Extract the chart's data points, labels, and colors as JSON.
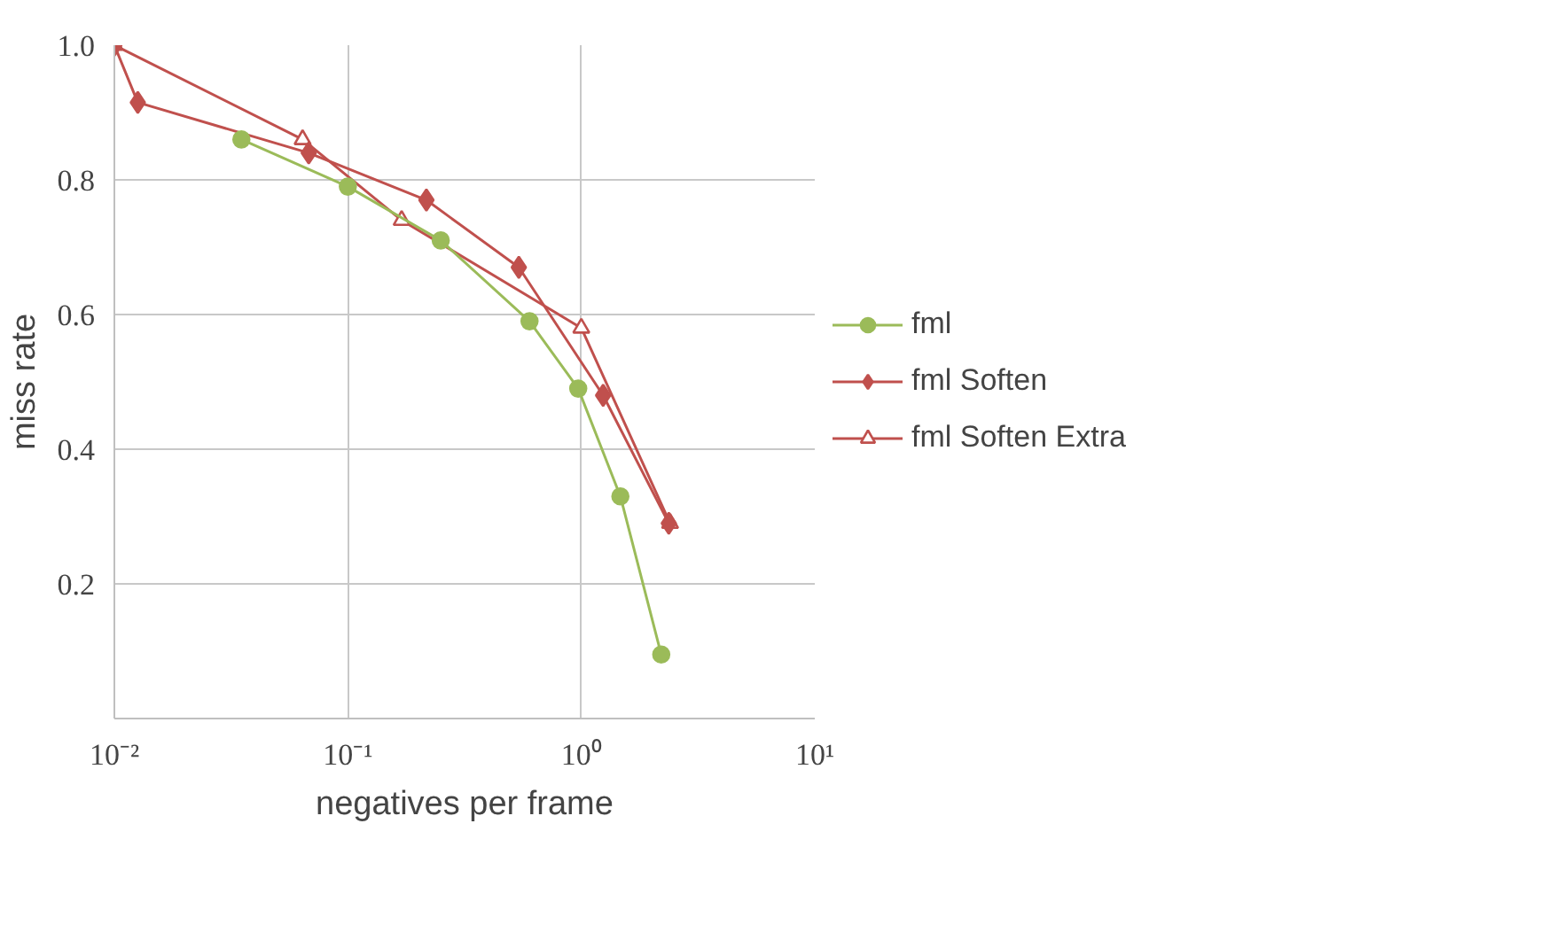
{
  "chart_data": {
    "type": "line",
    "xlabel": "negatives per frame",
    "ylabel": "miss rate",
    "log": "x",
    "grid": true,
    "legend": "right",
    "xlim": [
      0.01,
      10
    ],
    "xticks": [
      {
        "value": 0.01,
        "label": "10⁻²"
      },
      {
        "value": 0.1,
        "label": "10⁻¹"
      },
      {
        "value": 1,
        "label": "10⁰"
      },
      {
        "value": 10,
        "label": "10¹"
      }
    ],
    "ylim": [
      0,
      1.0
    ],
    "yticks": [
      0.2,
      0.4,
      0.6,
      0.8,
      {
        "value": 1.0,
        "label": "1.0"
      }
    ],
    "series": [
      {
        "name": "fml",
        "color": "#9bbb59",
        "marker": "circle",
        "x": [
          0.035,
          0.1,
          0.25,
          0.6,
          0.97,
          1.47,
          2.2
        ],
        "values": [
          0.86,
          0.79,
          0.71,
          0.59,
          0.49,
          0.33,
          0.095
        ]
      },
      {
        "name": "fml Soften",
        "color": "#c0504d",
        "marker": "diamond",
        "x": [
          0.01,
          0.0126,
          0.068,
          0.217,
          0.54,
          1.24,
          2.37
        ],
        "values": [
          1.0,
          0.915,
          0.84,
          0.77,
          0.67,
          0.48,
          0.29
        ]
      },
      {
        "name": "fml Soften Extra",
        "color": "#c0504d",
        "marker": "triangle",
        "x": [
          0.01,
          0.064,
          0.17,
          1.0,
          2.4
        ],
        "values": [
          1.0,
          0.86,
          0.74,
          0.58,
          0.29
        ]
      }
    ]
  }
}
